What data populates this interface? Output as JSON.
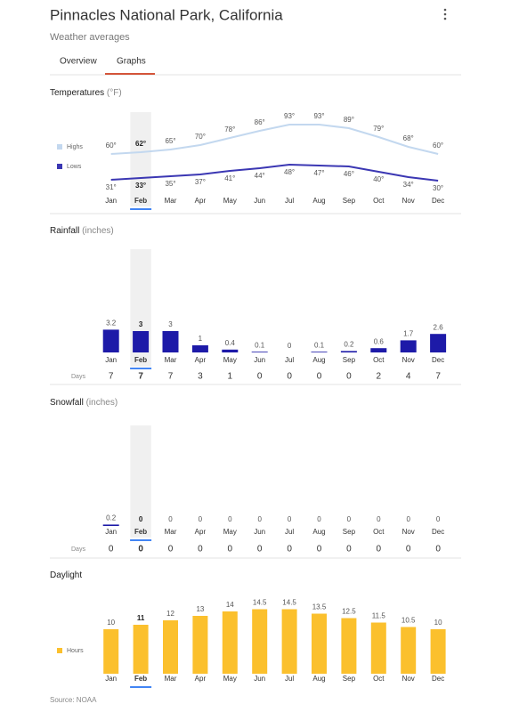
{
  "header": {
    "title": "Pinnacles National Park, California",
    "subtitle": "Weather averages"
  },
  "tabs": [
    "Overview",
    "Graphs"
  ],
  "active_tab": 1,
  "chart_data": [
    {
      "type": "line",
      "title": "Temperatures",
      "unit": "(°F)",
      "categories": [
        "Jan",
        "Feb",
        "Mar",
        "Apr",
        "May",
        "Jun",
        "Jul",
        "Aug",
        "Sep",
        "Oct",
        "Nov",
        "Dec"
      ],
      "selected": 1,
      "series": [
        {
          "name": "Highs",
          "color": "#c3d8ef",
          "values": [
            60,
            62,
            65,
            70,
            78,
            86,
            93,
            93,
            89,
            79,
            68,
            60
          ],
          "value_labels": [
            "60°",
            "62°",
            "65°",
            "70°",
            "78°",
            "86°",
            "93°",
            "93°",
            "89°",
            "79°",
            "68°",
            "60°"
          ]
        },
        {
          "name": "Lows",
          "color": "#3b37b3",
          "values": [
            31,
            33,
            35,
            37,
            41,
            44,
            48,
            47,
            46,
            40,
            34,
            30
          ],
          "value_labels": [
            "31°",
            "33°",
            "35°",
            "37°",
            "41°",
            "44°",
            "48°",
            "47°",
            "46°",
            "40°",
            "34°",
            "30°"
          ]
        }
      ]
    },
    {
      "type": "bar",
      "title": "Rainfall",
      "unit": "(inches)",
      "categories": [
        "Jan",
        "Feb",
        "Mar",
        "Apr",
        "May",
        "Jun",
        "Jul",
        "Aug",
        "Sep",
        "Oct",
        "Nov",
        "Dec"
      ],
      "selected": 1,
      "color": "#1d1aa8",
      "values": [
        3.2,
        3,
        3,
        1,
        0.4,
        0.1,
        0,
        0.1,
        0.2,
        0.6,
        1.7,
        2.6
      ],
      "days_label": "Days",
      "days": [
        7,
        7,
        7,
        3,
        1,
        0,
        0,
        0,
        0,
        2,
        4,
        7
      ]
    },
    {
      "type": "bar",
      "title": "Snowfall",
      "unit": "(inches)",
      "categories": [
        "Jan",
        "Feb",
        "Mar",
        "Apr",
        "May",
        "Jun",
        "Jul",
        "Aug",
        "Sep",
        "Oct",
        "Nov",
        "Dec"
      ],
      "selected": 1,
      "color": "#1d1aa8",
      "values": [
        0.2,
        0,
        0,
        0,
        0,
        0,
        0,
        0,
        0,
        0,
        0,
        0
      ],
      "days_label": "Days",
      "days": [
        0,
        0,
        0,
        0,
        0,
        0,
        0,
        0,
        0,
        0,
        0,
        0
      ]
    },
    {
      "type": "bar",
      "title": "Daylight",
      "categories": [
        "Jan",
        "Feb",
        "Mar",
        "Apr",
        "May",
        "Jun",
        "Jul",
        "Aug",
        "Sep",
        "Oct",
        "Nov",
        "Dec"
      ],
      "selected": 1,
      "series": [
        {
          "name": "Hours",
          "color": "#fbc02d",
          "values": [
            10,
            11,
            12,
            13,
            14,
            14.5,
            14.5,
            13.5,
            12.5,
            11.5,
            10.5,
            10
          ]
        }
      ]
    }
  ],
  "source": "Source: NOAA"
}
